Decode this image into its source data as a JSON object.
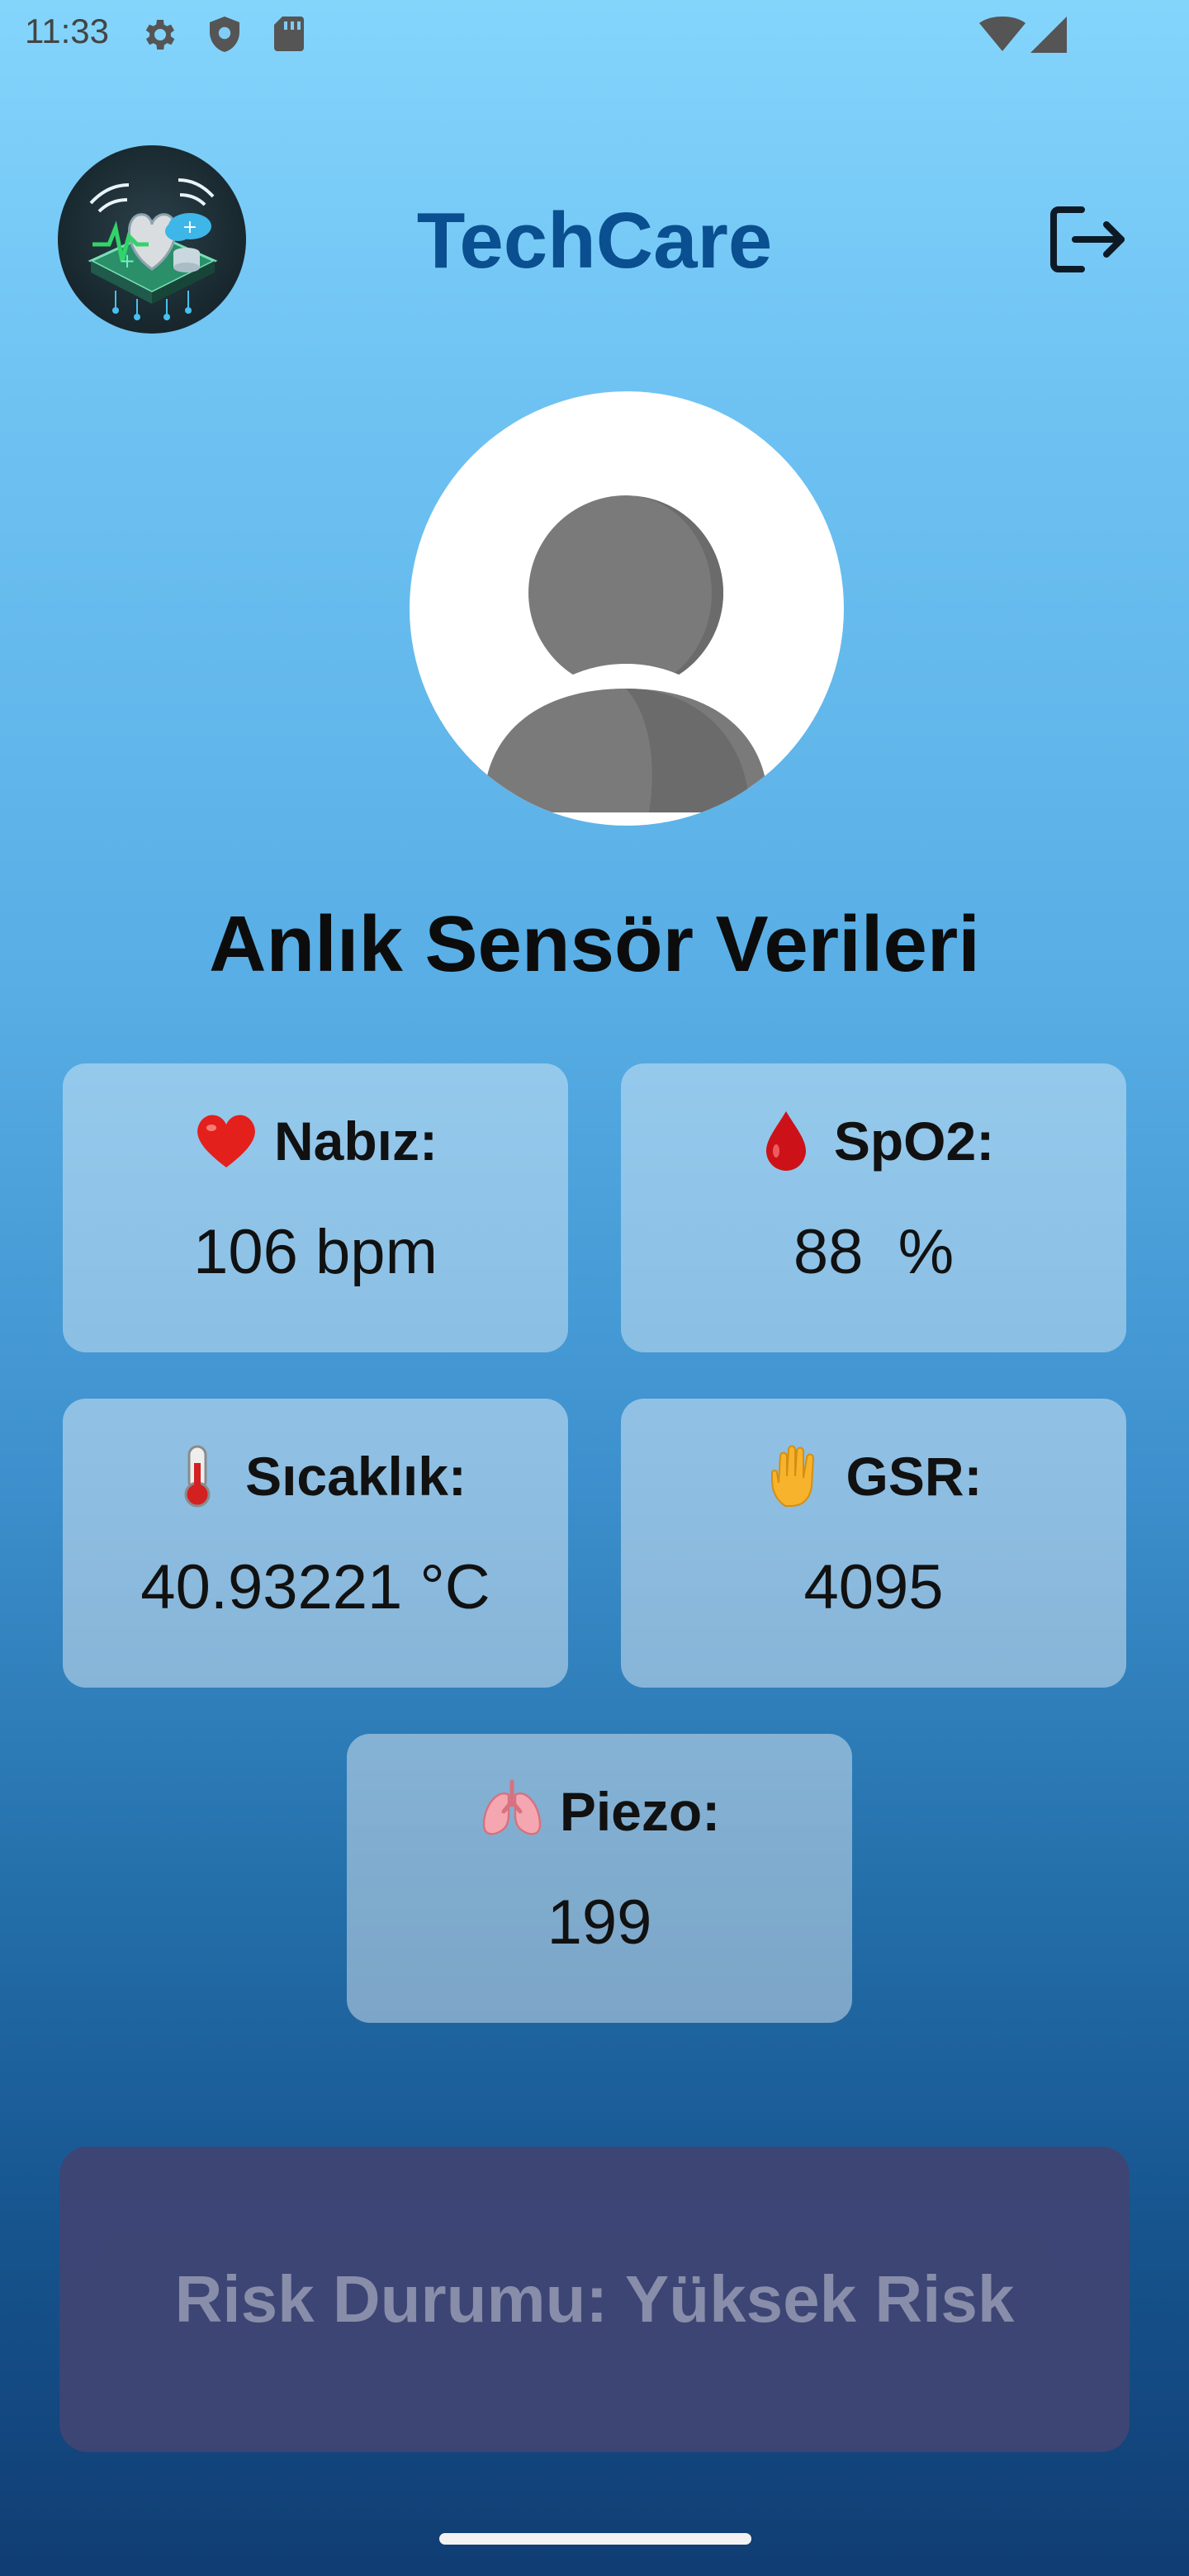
{
  "status_bar": {
    "time": "11:33",
    "icons": [
      "gear-icon",
      "shield-icon",
      "sd-card-icon",
      "wifi-icon",
      "signal-icon"
    ]
  },
  "header": {
    "app_title": "TechCare",
    "logo_icon": "techcare-logo",
    "logout_icon": "logout-icon"
  },
  "profile": {
    "avatar_icon": "person-icon"
  },
  "section": {
    "title": "Anlık Sensör Verileri"
  },
  "sensors": {
    "nabiz": {
      "label": "Nabız:",
      "value": "106 bpm",
      "icon": "heart-icon"
    },
    "spo2": {
      "label": "SpO2:",
      "value": "88  %",
      "icon": "blood-drop-icon"
    },
    "sicaklik": {
      "label": "Sıcaklık:",
      "value": "40.93221 °C",
      "icon": "thermometer-icon"
    },
    "gsr": {
      "label": "GSR:",
      "value": "4095",
      "icon": "hand-icon"
    },
    "piezo": {
      "label": "Piezo:",
      "value": "199",
      "icon": "lungs-icon"
    }
  },
  "risk": {
    "label": "Risk Durumu: Yüksek Risk"
  },
  "colors": {
    "title": "#0a4f8f",
    "risk_bg": "#3e4574",
    "risk_text": "#8d90ab"
  }
}
